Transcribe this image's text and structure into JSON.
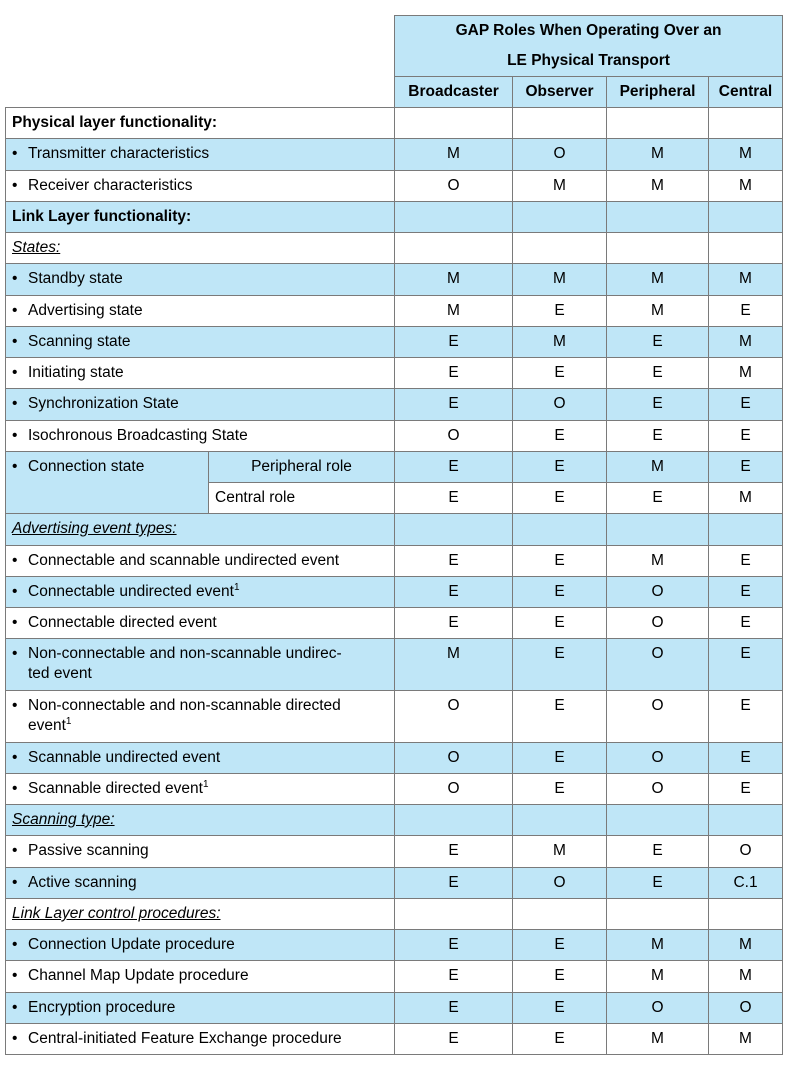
{
  "header": {
    "title_line1": "GAP Roles When Operating Over an",
    "title_line2": "LE Physical Transport",
    "columns": [
      "Broadcaster",
      "Observer",
      "Peripheral",
      "Central"
    ]
  },
  "sections": {
    "physical": "Physical layer functionality:",
    "link": "Link Layer functionality:",
    "states": "States:",
    "adv_types": "Advertising event types:",
    "scan_type": "Scanning type:",
    "control": "Link Layer control procedures:"
  },
  "bullet": "•",
  "rows": {
    "tx": {
      "label": "Transmitter characteristics",
      "v": [
        "M",
        "O",
        "M",
        "M"
      ]
    },
    "rx": {
      "label": "Receiver characteristics",
      "v": [
        "O",
        "M",
        "M",
        "M"
      ]
    },
    "standby": {
      "label": "Standby state",
      "v": [
        "M",
        "M",
        "M",
        "M"
      ]
    },
    "adv": {
      "label": "Advertising state",
      "v": [
        "M",
        "E",
        "M",
        "E"
      ]
    },
    "scan": {
      "label": "Scanning state",
      "v": [
        "E",
        "M",
        "E",
        "M"
      ]
    },
    "init": {
      "label": "Initiating state",
      "v": [
        "E",
        "E",
        "E",
        "M"
      ]
    },
    "sync": {
      "label": "Synchronization State",
      "v": [
        "E",
        "O",
        "E",
        "E"
      ]
    },
    "iso": {
      "label": "Isochronous Broadcasting State",
      "v": [
        "O",
        "E",
        "E",
        "E"
      ]
    },
    "conn": {
      "label": "Connection state",
      "sub1": "Peripheral role",
      "v1": [
        "E",
        "E",
        "M",
        "E"
      ],
      "sub2": "Central role",
      "v2": [
        "E",
        "E",
        "E",
        "M"
      ]
    },
    "cs_und": {
      "label": "Connectable and scannable undirected event",
      "v": [
        "E",
        "E",
        "M",
        "E"
      ]
    },
    "c_und": {
      "label": "Connectable undirected event",
      "sup": "1",
      "v": [
        "E",
        "E",
        "O",
        "E"
      ]
    },
    "c_dir": {
      "label": "Connectable directed event",
      "v": [
        "E",
        "E",
        "O",
        "E"
      ]
    },
    "nc_und": {
      "label1": "Non-connectable and non-scannable undirec-",
      "label2": "ted event",
      "v": [
        "M",
        "E",
        "O",
        "E"
      ]
    },
    "nc_dir": {
      "label1": "Non-connectable and non-scannable directed",
      "label2": "event",
      "sup": "1",
      "v": [
        "O",
        "E",
        "O",
        "E"
      ]
    },
    "s_und": {
      "label": "Scannable undirected event",
      "v": [
        "O",
        "E",
        "O",
        "E"
      ]
    },
    "s_dir": {
      "label": "Scannable directed event",
      "sup": "1",
      "v": [
        "O",
        "E",
        "O",
        "E"
      ]
    },
    "passive": {
      "label": "Passive scanning",
      "v": [
        "E",
        "M",
        "E",
        "O"
      ]
    },
    "active": {
      "label": "Active scanning",
      "v": [
        "E",
        "O",
        "E",
        "C.1"
      ]
    },
    "cu": {
      "label": "Connection Update procedure",
      "v": [
        "E",
        "E",
        "M",
        "M"
      ]
    },
    "cmu": {
      "label": "Channel Map Update procedure",
      "v": [
        "E",
        "E",
        "M",
        "M"
      ]
    },
    "enc": {
      "label": "Encryption procedure",
      "v": [
        "E",
        "E",
        "O",
        "O"
      ]
    },
    "feat": {
      "label": "Central-initiated Feature Exchange procedure",
      "v": [
        "E",
        "E",
        "M",
        "M"
      ]
    }
  }
}
